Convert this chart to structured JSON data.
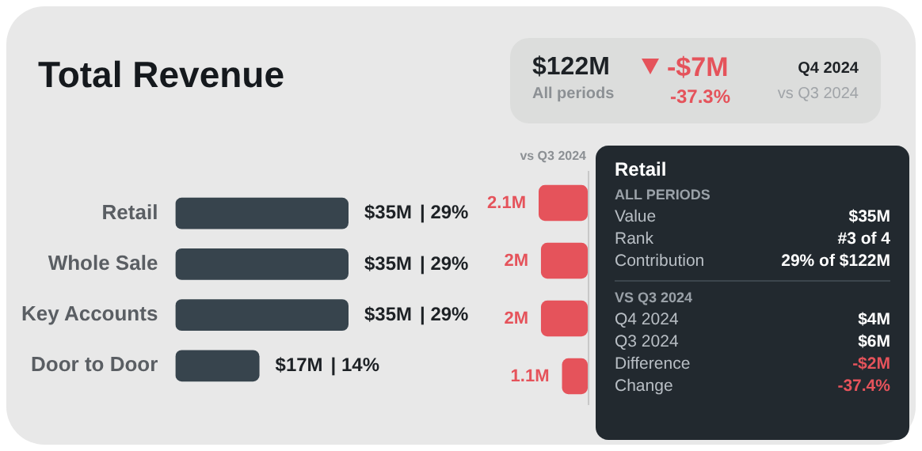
{
  "chart_data": [
    {
      "type": "bar",
      "orientation": "horizontal",
      "title": "Total Revenue",
      "categories": [
        "Retail",
        "Whole Sale",
        "Key Accounts",
        "Door to Door"
      ],
      "values": [
        35,
        35,
        35,
        17
      ],
      "color": "#37444d",
      "value_labels": [
        "$35M",
        "$35M",
        "$35M",
        "$17M"
      ],
      "annotations": [
        "$122M",
        "All periods",
        "-$7M",
        "-37.3%",
        "Q4 2024",
        "vs Q3 2024",
        "Retail",
        "ALL PERIODS",
        "Value",
        "$35M",
        "Rank",
        "#3 of 4",
        "Contribution",
        "29% of $122M",
        "VS Q3 2024",
        "Q4 2024",
        "$4M",
        "Q3 2024",
        "$6M",
        "Difference",
        "-$2M",
        "Change",
        "-37.4%",
        "| 29%",
        "| 29%",
        "| 29%",
        "| 14%"
      ],
      "tick_labels": "y"
    },
    {
      "type": "bar",
      "orientation": "horizontal",
      "title": "vs Q3 2024",
      "categories": [
        null,
        null,
        null,
        null
      ],
      "values": [
        2.1,
        2,
        2,
        1.1
      ],
      "color": "#e5535b",
      "xlim": [
        2.1,
        0
      ],
      "value_labels": [
        "2.1M",
        "2M",
        "2M",
        "1.1M"
      ],
      "tick_labels": false
    }
  ]
}
